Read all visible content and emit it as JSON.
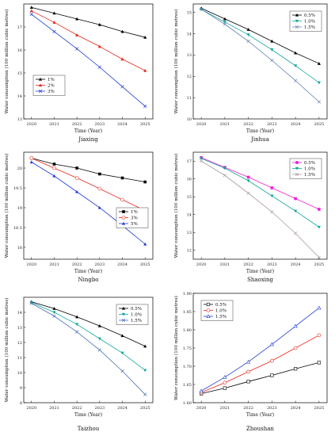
{
  "chart_data": [
    {
      "type": "line",
      "city": "Jiaxing",
      "xlabel": "Time (Year)",
      "ylabel": "Water consumption (100 million cubic metres)",
      "x": [
        2020,
        2021,
        2022,
        2023,
        2024,
        2025
      ],
      "ylim": [
        13,
        18
      ],
      "yticks": [
        13,
        14,
        15,
        16,
        17
      ],
      "legend_position": "middle-left",
      "series": [
        {
          "name": "1%",
          "color": "#000000",
          "marker": "triangle-up",
          "values": [
            17.85,
            17.6,
            17.35,
            17.1,
            16.8,
            16.55
          ]
        },
        {
          "name": "2%",
          "color": "#e8261c",
          "marker": "triangle-up",
          "values": [
            17.7,
            17.2,
            16.65,
            16.15,
            15.6,
            15.1
          ]
        },
        {
          "name": "3%",
          "color": "#1f3bd6",
          "marker": "x",
          "values": [
            17.55,
            16.8,
            16.05,
            15.25,
            14.4,
            13.55
          ]
        }
      ]
    },
    {
      "type": "line",
      "city": "Jinhua",
      "xlabel": "Time (Year)",
      "ylabel": "Water consumption (100 million cubic metres)",
      "x": [
        2020,
        2021,
        2022,
        2023,
        2024,
        2025
      ],
      "ylim": [
        10,
        15.4
      ],
      "yticks": [
        10,
        11,
        12,
        13,
        14,
        15
      ],
      "legend_position": "top-right",
      "series": [
        {
          "name": "0.5%",
          "color": "#000000",
          "marker": "triangle-up",
          "values": [
            15.2,
            14.7,
            14.2,
            13.65,
            13.1,
            12.6
          ]
        },
        {
          "name": "1.0%",
          "color": "#12a89a",
          "marker": "triangle-down",
          "values": [
            15.15,
            14.55,
            13.95,
            13.25,
            12.5,
            11.7
          ]
        },
        {
          "name": "1.5%",
          "color": "#6a87b8",
          "marker": "x",
          "values": [
            15.15,
            14.45,
            13.65,
            12.75,
            11.8,
            10.8
          ]
        }
      ]
    },
    {
      "type": "line",
      "city": "Ningbo",
      "xlabel": "Time (Year)",
      "ylabel": "Water consumption (100 million cubic metres)",
      "x": [
        2020,
        2021,
        2022,
        2023,
        2024,
        2025
      ],
      "ylim": [
        17.7,
        20.4
      ],
      "yticks": [
        18.0,
        18.5,
        19.0,
        19.5,
        20.0
      ],
      "legend_position": "middle-right",
      "series": [
        {
          "name": "1%",
          "color": "#000000",
          "marker": "square",
          "values": [
            20.25,
            20.1,
            20.0,
            19.85,
            19.75,
            19.65
          ]
        },
        {
          "name": "3%",
          "color": "#e8261c",
          "marker": "circle-open",
          "values": [
            20.25,
            20.0,
            19.75,
            19.48,
            19.2,
            18.93
          ]
        },
        {
          "name": "5%",
          "color": "#1f3bd6",
          "marker": "triangle-up",
          "values": [
            20.15,
            19.8,
            19.4,
            19.0,
            18.55,
            18.08
          ]
        }
      ]
    },
    {
      "type": "line",
      "city": "Shaoxing",
      "xlabel": "Time (Year)",
      "ylabel": "Water consumption (100 million cubic metres)",
      "x": [
        2020,
        2021,
        2022,
        2023,
        2024,
        2025
      ],
      "ylim": [
        11.5,
        17.5
      ],
      "yticks": [
        12,
        13,
        14,
        15,
        16,
        17
      ],
      "legend_position": "top-right",
      "series": [
        {
          "name": "0.5%",
          "color": "#ee1fd8",
          "marker": "square",
          "values": [
            17.2,
            16.65,
            16.1,
            15.5,
            14.9,
            14.3
          ]
        },
        {
          "name": "1.0%",
          "color": "#12a89a",
          "marker": "triangle-down",
          "values": [
            17.15,
            16.6,
            15.9,
            15.05,
            14.2,
            13.3
          ]
        },
        {
          "name": "1.5%",
          "color": "#aa9aa0",
          "marker": "x",
          "values": [
            17.0,
            16.2,
            15.2,
            14.15,
            12.95,
            11.6
          ]
        }
      ]
    },
    {
      "type": "line",
      "city": "Taizhou",
      "xlabel": "Time (Year)",
      "ylabel": "Water consumption (100 million cubic metres)",
      "x": [
        2020,
        2021,
        2022,
        2023,
        2024,
        2025
      ],
      "ylim": [
        8,
        15
      ],
      "yticks": [
        8,
        9,
        10,
        11,
        12,
        13,
        14
      ],
      "legend_position": "top-right",
      "series": [
        {
          "name": "0.5%",
          "color": "#000000",
          "marker": "triangle-up",
          "values": [
            14.7,
            14.25,
            13.7,
            13.1,
            12.45,
            11.75
          ]
        },
        {
          "name": "1.0%",
          "color": "#12a89a",
          "marker": "triangle-down",
          "values": [
            14.65,
            14.0,
            13.2,
            12.25,
            11.3,
            10.15
          ]
        },
        {
          "name": "1.5%",
          "color": "#4a6fb5",
          "marker": "x",
          "values": [
            14.6,
            13.75,
            12.7,
            11.5,
            10.1,
            8.55
          ]
        }
      ]
    },
    {
      "type": "line",
      "city": "Zhoushan",
      "xlabel": "Time (Year)",
      "ylabel": "Water consumption (100 million cubic metres)",
      "x": [
        2020,
        2021,
        2022,
        2023,
        2024,
        2025
      ],
      "ylim": [
        1.6,
        1.9
      ],
      "yticks": [
        "1.60",
        "1.65",
        "1.70",
        "1.75",
        "1.80",
        "1.85",
        "1.90"
      ],
      "legend_position": "top-left",
      "series": [
        {
          "name": "0.5%",
          "color": "#000000",
          "marker": "square-open",
          "values": [
            1.625,
            1.64,
            1.658,
            1.675,
            1.693,
            1.71
          ]
        },
        {
          "name": "1.0%",
          "color": "#e8261c",
          "marker": "circle-open",
          "values": [
            1.628,
            1.655,
            1.685,
            1.715,
            1.75,
            1.785
          ]
        },
        {
          "name": "1.5%",
          "color": "#1f3bd6",
          "marker": "triangle-open",
          "values": [
            1.632,
            1.67,
            1.712,
            1.76,
            1.81,
            1.86
          ]
        }
      ]
    }
  ]
}
